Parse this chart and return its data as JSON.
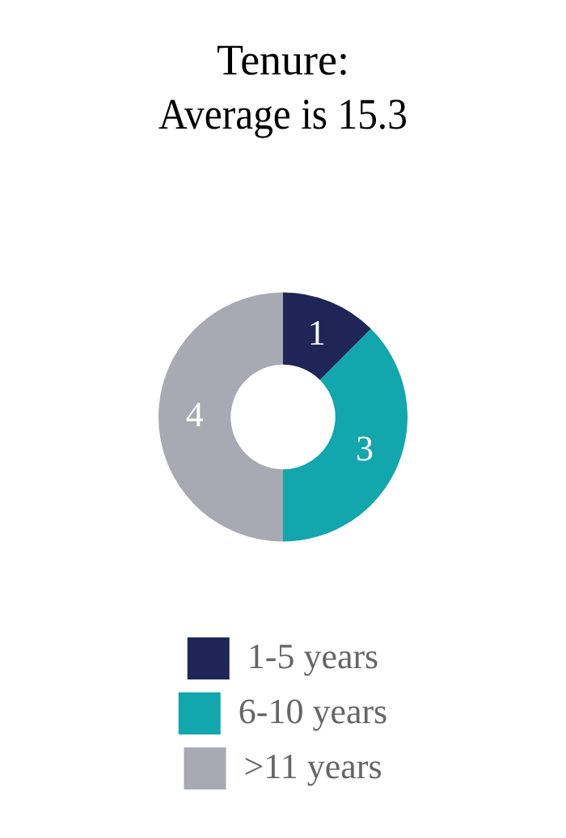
{
  "chart_data": {
    "type": "donut",
    "title": "Tenure:\nAverage is 15.3",
    "categories": [
      "1-5 years",
      "6-10 years",
      ">11 years"
    ],
    "values": [
      1,
      3,
      4
    ],
    "colors": [
      "#1f2657",
      "#13a6ad",
      "#a7a9b3"
    ],
    "data_labels": true,
    "legend": "bottom"
  }
}
